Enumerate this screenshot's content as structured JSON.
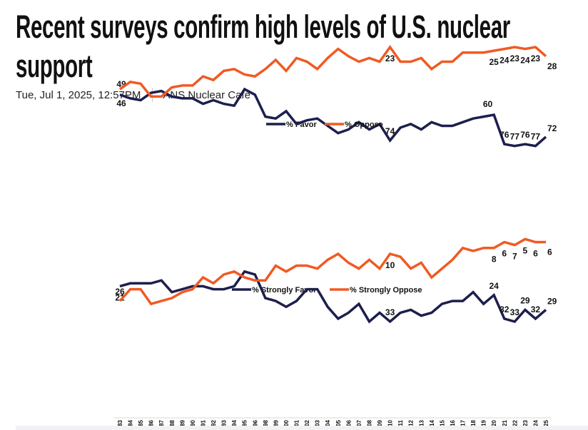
{
  "article": {
    "title": "Recent surveys confirm high levels of U.S. nuclear support",
    "date": "Tue, Jul 1, 2025, 12:57PM",
    "source": "ANS Nuclear Cafe"
  },
  "colors": {
    "favor": "#1c1f4d",
    "oppose": "#f05a22"
  },
  "chart_data": [
    {
      "type": "line",
      "title": "",
      "xlabel": "",
      "ylabel": "",
      "ylim": [
        20,
        80
      ],
      "grid": false,
      "legend": "top-center",
      "x": [
        "1983",
        "1984",
        "1985",
        "1986",
        "1987",
        "1988",
        "1989",
        "1990",
        "1991",
        "1992",
        "1993",
        "1994",
        "1995",
        "1996",
        "1998",
        "1999",
        "2000",
        "2001",
        "2002",
        "2003",
        "2004",
        "2005",
        "2006",
        "2007",
        "2008",
        "2009",
        "2010",
        "2011",
        "2012",
        "2013",
        "2014",
        "2015",
        "2016",
        "2017",
        "2018",
        "2019",
        "2020",
        "2021",
        "2022",
        "2023",
        "2024",
        "2025"
      ],
      "series": [
        {
          "name": "% Favor",
          "color_key": "favor",
          "values": [
            49,
            51,
            52,
            48,
            47,
            50,
            51,
            51,
            54,
            52,
            54,
            55,
            46,
            49,
            61,
            62,
            58,
            65,
            63,
            62,
            66,
            70,
            68,
            64,
            68,
            65,
            74,
            67,
            65,
            68,
            64,
            66,
            66,
            64,
            62,
            61,
            60,
            76,
            77,
            76,
            77,
            72
          ],
          "labels": [
            {
              "x": "1983",
              "text": "49",
              "pos": "left-above"
            },
            {
              "x": "2010",
              "text": "74",
              "pos": "above"
            },
            {
              "x": "2020",
              "text": "60",
              "pos": "left-above"
            },
            {
              "x": "2021",
              "text": "76",
              "pos": "above"
            },
            {
              "x": "2022",
              "text": "77",
              "pos": "above"
            },
            {
              "x": "2023",
              "text": "76",
              "pos": "above"
            },
            {
              "x": "2024",
              "text": "77",
              "pos": "above"
            },
            {
              "x": "2025",
              "text": "72",
              "pos": "right-above"
            }
          ]
        },
        {
          "name": "% Oppose",
          "color_key": "oppose",
          "values": [
            46,
            42,
            43,
            50,
            50,
            45,
            44,
            44,
            39,
            41,
            36,
            35,
            38,
            39,
            35,
            30,
            36,
            29,
            31,
            35,
            29,
            24,
            28,
            31,
            29,
            31,
            23,
            31,
            31,
            29,
            35,
            31,
            31,
            26,
            26,
            26,
            25,
            24,
            23,
            24,
            23,
            28
          ],
          "labels": [
            {
              "x": "1983",
              "text": "46",
              "pos": "left-below"
            },
            {
              "x": "2010",
              "text": "23",
              "pos": "below"
            },
            {
              "x": "2020",
              "text": "25",
              "pos": "below"
            },
            {
              "x": "2021",
              "text": "24",
              "pos": "below"
            },
            {
              "x": "2022",
              "text": "23",
              "pos": "below"
            },
            {
              "x": "2023",
              "text": "24",
              "pos": "below"
            },
            {
              "x": "2024",
              "text": "23",
              "pos": "below"
            },
            {
              "x": "2025",
              "text": "28",
              "pos": "right-below"
            }
          ]
        }
      ]
    },
    {
      "type": "line",
      "title": "",
      "xlabel": "",
      "ylabel": "",
      "ylim": [
        0,
        36
      ],
      "grid": false,
      "legend": "top-center",
      "x": [
        "1983",
        "1984",
        "1985",
        "1986",
        "1987",
        "1988",
        "1989",
        "1990",
        "1991",
        "1992",
        "1993",
        "1994",
        "1995",
        "1996",
        "1998",
        "1999",
        "2000",
        "2001",
        "2002",
        "2003",
        "2004",
        "2005",
        "2006",
        "2007",
        "2008",
        "2009",
        "2010",
        "2011",
        "2012",
        "2013",
        "2014",
        "2015",
        "2016",
        "2017",
        "2018",
        "2019",
        "2020",
        "2021",
        "2022",
        "2023",
        "2024",
        "2025"
      ],
      "series": [
        {
          "name": "% Strongly Favor",
          "color_key": "favor",
          "values": [
            21,
            20,
            20,
            20,
            19,
            23,
            22,
            21,
            21,
            22,
            22,
            21,
            16,
            17,
            25,
            26,
            28,
            26,
            22,
            22,
            28,
            32,
            30,
            27,
            33,
            30,
            33,
            30,
            29,
            31,
            30,
            27,
            26,
            26,
            23,
            27,
            24,
            32,
            33,
            29,
            32,
            29
          ],
          "labels": [
            {
              "x": "1983",
              "text": "21",
              "pos": "below"
            },
            {
              "x": "2010",
              "text": "33",
              "pos": "above"
            },
            {
              "x": "2020",
              "text": "24",
              "pos": "above"
            },
            {
              "x": "2021",
              "text": "32",
              "pos": "above"
            },
            {
              "x": "2022",
              "text": "33",
              "pos": "above"
            },
            {
              "x": "2023",
              "text": "29",
              "pos": "above"
            },
            {
              "x": "2024",
              "text": "32",
              "pos": "above"
            },
            {
              "x": "2025",
              "text": "29",
              "pos": "right-above"
            }
          ]
        },
        {
          "name": "% Strongly Oppose",
          "color_key": "oppose",
          "values": [
            26,
            22,
            22,
            27,
            26,
            25,
            23,
            22,
            18,
            20,
            17,
            16,
            18,
            19,
            19,
            14,
            16,
            14,
            14,
            15,
            12,
            10,
            13,
            15,
            12,
            15,
            10,
            11,
            15,
            13,
            18,
            15,
            12,
            8,
            9,
            8,
            8,
            6,
            7,
            5,
            6,
            6
          ],
          "labels": [
            {
              "x": "1983",
              "text": "26",
              "pos": "above"
            },
            {
              "x": "2010",
              "text": "10",
              "pos": "below"
            },
            {
              "x": "2020",
              "text": "8",
              "pos": "below"
            },
            {
              "x": "2021",
              "text": "6",
              "pos": "below"
            },
            {
              "x": "2022",
              "text": "7",
              "pos": "below"
            },
            {
              "x": "2023",
              "text": "5",
              "pos": "below"
            },
            {
              "x": "2024",
              "text": "6",
              "pos": "below"
            },
            {
              "x": "2025",
              "text": "6",
              "pos": "right-below"
            }
          ]
        }
      ]
    }
  ]
}
